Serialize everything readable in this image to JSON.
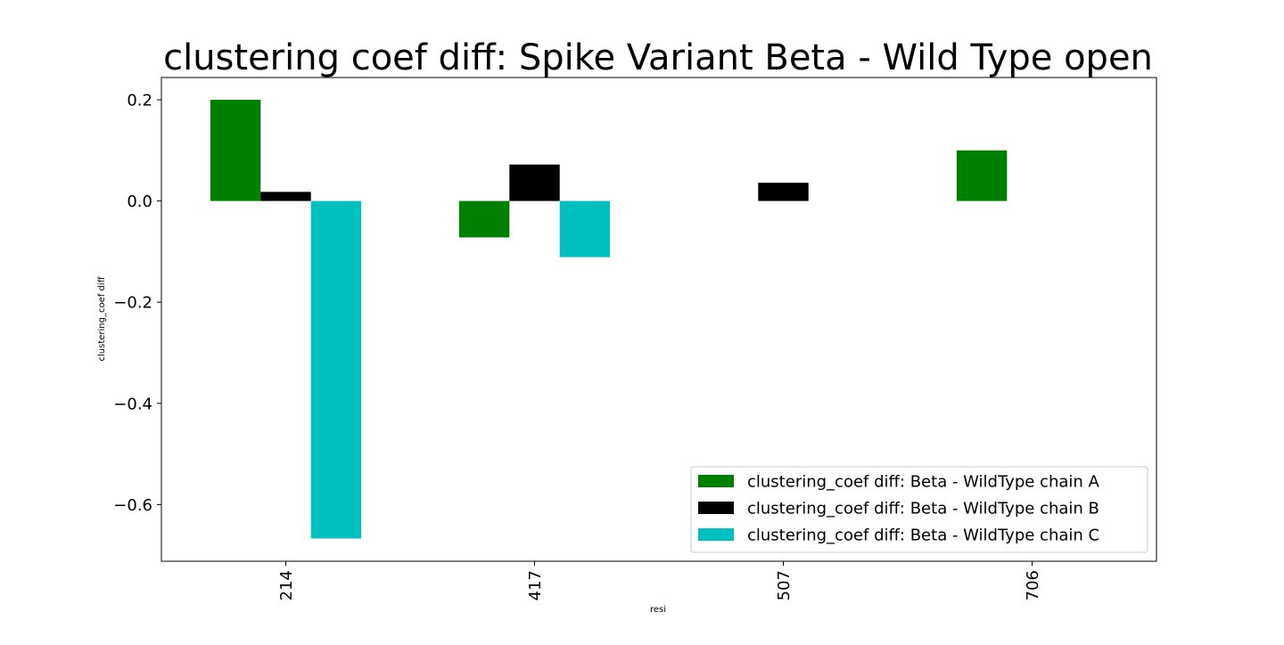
{
  "chart_data": {
    "type": "bar",
    "title": "clustering coef diff: Spike Variant Beta - Wild Type open",
    "xlabel": "resi",
    "ylabel": "clustering_coef diff",
    "categories": [
      "214",
      "417",
      "507",
      "706"
    ],
    "series": [
      {
        "name": "clustering_coef diff: Beta - WildType chain A",
        "color": "#008000",
        "values": [
          0.2,
          -0.072,
          null,
          0.1
        ]
      },
      {
        "name": "clustering_coef diff: Beta - WildType chain B",
        "color": "#000000",
        "values": [
          0.018,
          0.072,
          0.036,
          null
        ]
      },
      {
        "name": "clustering_coef diff: Beta - WildType chain C",
        "color": "#00bfbf",
        "values": [
          -0.667,
          -0.111,
          null,
          null
        ]
      }
    ],
    "ylim": [
      -0.712,
      0.244
    ],
    "yticks": [
      0.2,
      0.0,
      -0.2,
      -0.4,
      -0.6
    ],
    "ytick_labels": [
      "0.2",
      "0.0",
      "−0.2",
      "−0.4",
      "−0.6"
    ],
    "grid": false,
    "legend_position": "lower-right"
  }
}
